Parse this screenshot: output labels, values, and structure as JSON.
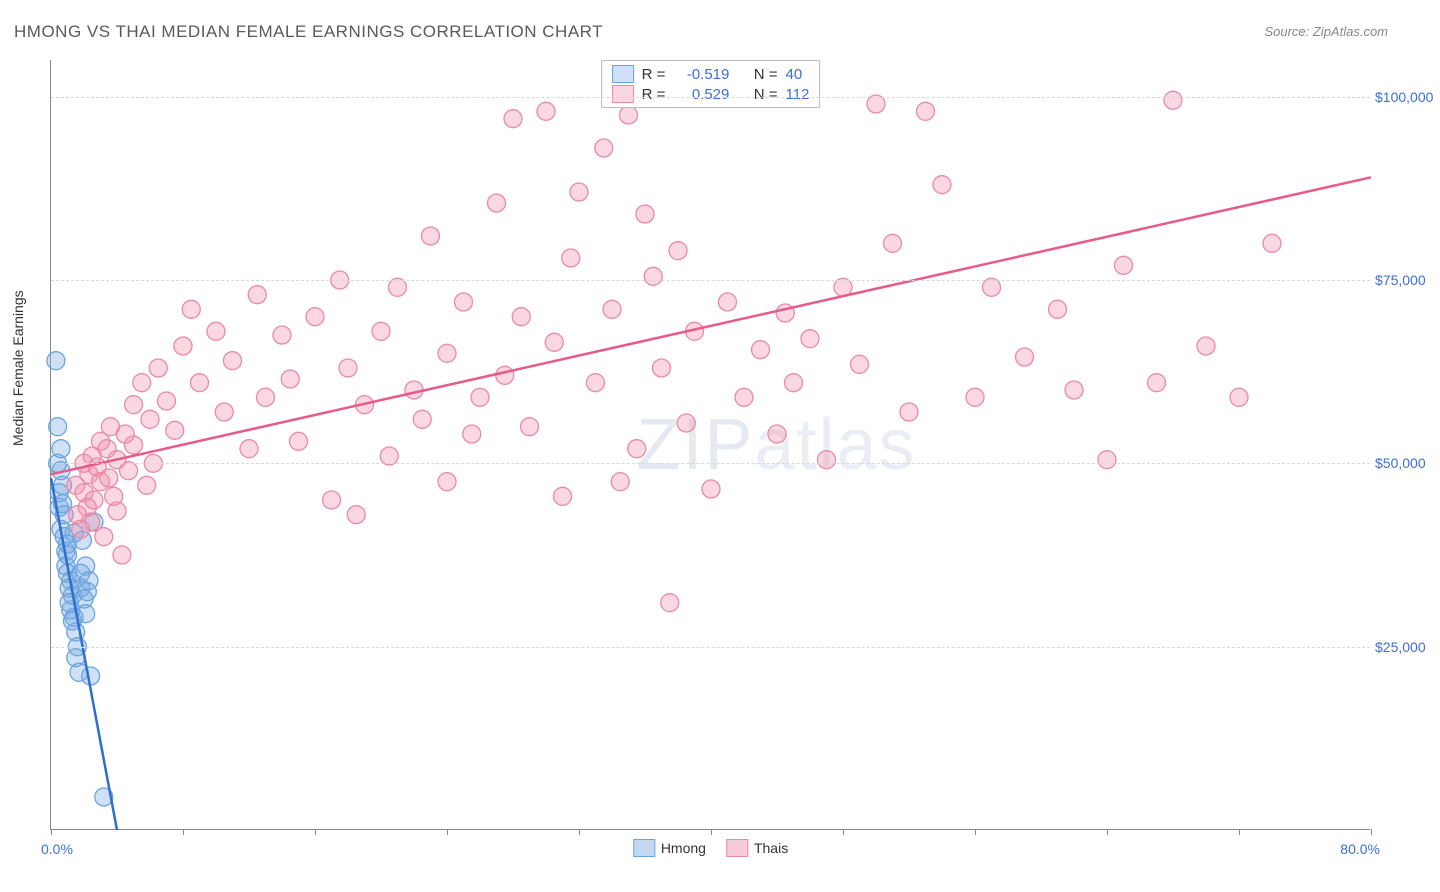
{
  "title": "HMONG VS THAI MEDIAN FEMALE EARNINGS CORRELATION CHART",
  "source": "Source: ZipAtlas.com",
  "y_axis_label": "Median Female Earnings",
  "watermark_a": "ZIP",
  "watermark_b": "atlas",
  "chart": {
    "type": "scatter",
    "x_min": 0.0,
    "x_max": 80.0,
    "x_min_label": "0.0%",
    "x_max_label": "80.0%",
    "x_tick_step": 8.0,
    "y_min": 0,
    "y_max": 105000,
    "y_gridlines": [
      25000,
      50000,
      75000,
      100000
    ],
    "y_tick_labels": [
      "$25,000",
      "$50,000",
      "$75,000",
      "$100,000"
    ],
    "grid_color": "#d8d8d8",
    "axis_color": "#888888",
    "background_color": "#ffffff",
    "label_color": "#3d6fd6",
    "marker_radius": 9,
    "marker_stroke_width": 1.3,
    "trend_line_width": 2.5,
    "series": [
      {
        "name": "Hmong",
        "fill": "rgba(120,170,225,0.35)",
        "stroke": "#6aa4dd",
        "line_color": "#2e6fd0",
        "R_label": "R =",
        "R": "-0.519",
        "N_label": "N =",
        "N": "40",
        "trend": {
          "x1": 0.0,
          "y1": 48000,
          "x2": 4.0,
          "y2": 0
        },
        "points": [
          [
            0.3,
            64000
          ],
          [
            0.4,
            55000
          ],
          [
            0.5,
            44000
          ],
          [
            0.5,
            46000
          ],
          [
            0.6,
            49000
          ],
          [
            0.6,
            41000
          ],
          [
            0.7,
            47000
          ],
          [
            0.7,
            44500
          ],
          [
            0.8,
            43000
          ],
          [
            0.8,
            40000
          ],
          [
            0.9,
            38000
          ],
          [
            0.9,
            36000
          ],
          [
            1.0,
            39000
          ],
          [
            1.0,
            35000
          ],
          [
            1.0,
            37500
          ],
          [
            1.1,
            33000
          ],
          [
            1.1,
            31000
          ],
          [
            1.2,
            34000
          ],
          [
            1.2,
            30000
          ],
          [
            1.3,
            32000
          ],
          [
            1.3,
            28500
          ],
          [
            1.4,
            29000
          ],
          [
            1.5,
            27000
          ],
          [
            1.5,
            23500
          ],
          [
            1.6,
            25000
          ],
          [
            1.7,
            21500
          ],
          [
            1.8,
            33000
          ],
          [
            1.8,
            35000
          ],
          [
            2.0,
            31500
          ],
          [
            2.1,
            29500
          ],
          [
            2.1,
            36000
          ],
          [
            2.3,
            34000
          ],
          [
            2.4,
            21000
          ],
          [
            2.6,
            42000
          ],
          [
            0.4,
            50000
          ],
          [
            0.6,
            52000
          ],
          [
            3.2,
            4500
          ],
          [
            1.9,
            39500
          ],
          [
            2.2,
            32500
          ],
          [
            1.4,
            40500
          ]
        ]
      },
      {
        "name": "Thais",
        "fill": "rgba(240,140,170,0.35)",
        "stroke": "#e88aa8",
        "line_color": "#e85a8a",
        "R_label": "R =",
        "R": "0.529",
        "N_label": "N =",
        "N": "112",
        "trend": {
          "x1": 0.0,
          "y1": 48500,
          "x2": 80.0,
          "y2": 89000
        },
        "points": [
          [
            1.5,
            47000
          ],
          [
            1.6,
            43000
          ],
          [
            1.8,
            41000
          ],
          [
            2.0,
            50000
          ],
          [
            2.0,
            46000
          ],
          [
            2.2,
            44000
          ],
          [
            2.3,
            48500
          ],
          [
            2.4,
            42000
          ],
          [
            2.5,
            51000
          ],
          [
            2.6,
            45000
          ],
          [
            2.8,
            49500
          ],
          [
            3.0,
            53000
          ],
          [
            3.0,
            47500
          ],
          [
            3.2,
            40000
          ],
          [
            3.4,
            52000
          ],
          [
            3.5,
            48000
          ],
          [
            3.6,
            55000
          ],
          [
            3.8,
            45500
          ],
          [
            4.0,
            50500
          ],
          [
            4.0,
            43500
          ],
          [
            4.3,
            37500
          ],
          [
            4.5,
            54000
          ],
          [
            4.7,
            49000
          ],
          [
            5.0,
            58000
          ],
          [
            5.0,
            52500
          ],
          [
            5.5,
            61000
          ],
          [
            5.8,
            47000
          ],
          [
            6.0,
            56000
          ],
          [
            6.2,
            50000
          ],
          [
            6.5,
            63000
          ],
          [
            7.0,
            58500
          ],
          [
            7.5,
            54500
          ],
          [
            8.0,
            66000
          ],
          [
            8.5,
            71000
          ],
          [
            9.0,
            61000
          ],
          [
            10.0,
            68000
          ],
          [
            10.5,
            57000
          ],
          [
            11.0,
            64000
          ],
          [
            12.0,
            52000
          ],
          [
            12.5,
            73000
          ],
          [
            13.0,
            59000
          ],
          [
            14.0,
            67500
          ],
          [
            14.5,
            61500
          ],
          [
            15.0,
            53000
          ],
          [
            16.0,
            70000
          ],
          [
            17.0,
            45000
          ],
          [
            17.5,
            75000
          ],
          [
            18.0,
            63000
          ],
          [
            18.5,
            43000
          ],
          [
            19.0,
            58000
          ],
          [
            20.0,
            68000
          ],
          [
            20.5,
            51000
          ],
          [
            21.0,
            74000
          ],
          [
            22.0,
            60000
          ],
          [
            22.5,
            56000
          ],
          [
            23.0,
            81000
          ],
          [
            24.0,
            65000
          ],
          [
            24.0,
            47500
          ],
          [
            25.0,
            72000
          ],
          [
            25.5,
            54000
          ],
          [
            26.0,
            59000
          ],
          [
            27.0,
            85500
          ],
          [
            27.5,
            62000
          ],
          [
            28.0,
            97000
          ],
          [
            28.5,
            70000
          ],
          [
            29.0,
            55000
          ],
          [
            30.0,
            98000
          ],
          [
            30.5,
            66500
          ],
          [
            31.0,
            45500
          ],
          [
            31.5,
            78000
          ],
          [
            32.0,
            87000
          ],
          [
            33.0,
            61000
          ],
          [
            33.5,
            93000
          ],
          [
            34.0,
            71000
          ],
          [
            34.5,
            47500
          ],
          [
            35.0,
            97500
          ],
          [
            35.5,
            52000
          ],
          [
            36.0,
            84000
          ],
          [
            36.5,
            75500
          ],
          [
            37.0,
            63000
          ],
          [
            37.5,
            31000
          ],
          [
            38.0,
            79000
          ],
          [
            38.5,
            55500
          ],
          [
            39.0,
            68000
          ],
          [
            40.0,
            46500
          ],
          [
            41.0,
            72000
          ],
          [
            42.0,
            59000
          ],
          [
            43.0,
            65500
          ],
          [
            44.0,
            54000
          ],
          [
            44.5,
            70500
          ],
          [
            45.0,
            61000
          ],
          [
            46.0,
            67000
          ],
          [
            47.0,
            50500
          ],
          [
            48.0,
            74000
          ],
          [
            49.0,
            63500
          ],
          [
            50.0,
            99000
          ],
          [
            51.0,
            80000
          ],
          [
            52.0,
            57000
          ],
          [
            53.0,
            98000
          ],
          [
            54.0,
            88000
          ],
          [
            56.0,
            59000
          ],
          [
            57.0,
            74000
          ],
          [
            59.0,
            64500
          ],
          [
            61.0,
            71000
          ],
          [
            62.0,
            60000
          ],
          [
            64.0,
            50500
          ],
          [
            65.0,
            77000
          ],
          [
            67.0,
            61000
          ],
          [
            68.0,
            99500
          ],
          [
            70.0,
            66000
          ],
          [
            72.0,
            59000
          ],
          [
            74.0,
            80000
          ]
        ]
      }
    ],
    "bottom_legend": [
      {
        "name": "Hmong",
        "fill": "rgba(120,170,225,0.45)",
        "stroke": "#6aa4dd"
      },
      {
        "name": "Thais",
        "fill": "rgba(240,140,170,0.45)",
        "stroke": "#e88aa8"
      }
    ]
  }
}
